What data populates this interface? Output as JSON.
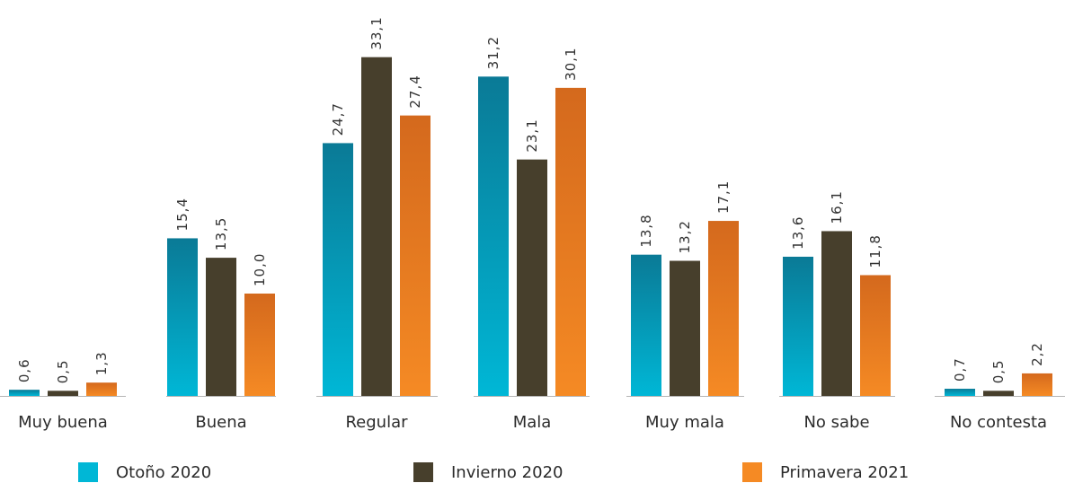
{
  "chart_data": {
    "type": "bar",
    "categories": [
      "Muy buena",
      "Buena",
      "Regular",
      "Mala",
      "Muy mala",
      "No sabe",
      "No contesta"
    ],
    "series": [
      {
        "name": "Otoño 2020",
        "values": [
          0.6,
          15.4,
          24.7,
          31.2,
          13.8,
          13.6,
          0.7
        ],
        "labels": [
          "0,6",
          "15,4",
          "24,7",
          "31,2",
          "13,8",
          "13,6",
          "0,7"
        ]
      },
      {
        "name": "Invierno 2020",
        "values": [
          0.5,
          13.5,
          33.1,
          23.1,
          13.2,
          16.1,
          0.5
        ],
        "labels": [
          "0,5",
          "13,5",
          "33,1",
          "23,1",
          "13,2",
          "16,1",
          "0,5"
        ]
      },
      {
        "name": "Primavera 2021",
        "values": [
          1.3,
          10.0,
          27.4,
          30.1,
          17.1,
          11.8,
          2.2
        ],
        "labels": [
          "1,3",
          "10,0",
          "27,4",
          "30,1",
          "17,1",
          "11,8",
          "2,2"
        ]
      }
    ],
    "colors": {
      "Otoño 2020": {
        "top": "#0a7a96",
        "bottom": "#00b7d6"
      },
      "Invierno 2020": {
        "top": "#473f2c",
        "bottom": "#473f2c"
      },
      "Primavera 2021": {
        "top": "#d4691d",
        "bottom": "#f58a24"
      }
    },
    "legend_position": "bottom",
    "grid": false,
    "ylim": [
      0,
      35
    ]
  }
}
